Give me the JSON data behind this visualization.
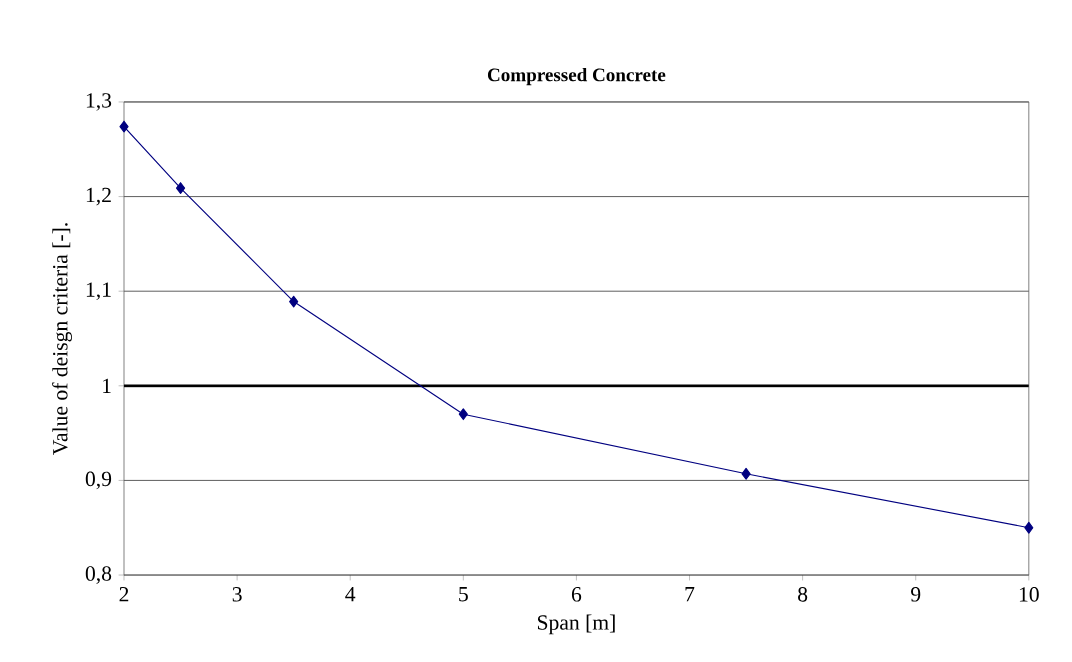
{
  "chart_data": {
    "type": "line",
    "title": "Compressed Concrete",
    "xlabel": "Span [m]",
    "ylabel": "Value of deisgn criteria [-].",
    "x": [
      2,
      2.5,
      3.5,
      5,
      7.5,
      10
    ],
    "series": [
      {
        "color": "#000080",
        "values": [
          1.274,
          1.209,
          1.089,
          0.97,
          0.907,
          0.85
        ]
      }
    ],
    "xlim": [
      2,
      10
    ],
    "xticks": [
      2,
      3,
      4,
      5,
      6,
      7,
      8,
      9,
      10
    ],
    "ylim": [
      0.8,
      1.3
    ],
    "yticks": [
      {
        "value": 0.8,
        "label": "0,8"
      },
      {
        "value": 0.9,
        "label": "0,9"
      },
      {
        "value": 1,
        "label": "1"
      },
      {
        "value": 1.1,
        "label": "1,1"
      },
      {
        "value": 1.2,
        "label": "1,2"
      },
      {
        "value": 1.3,
        "label": "1,3"
      }
    ],
    "ref_lines": [
      {
        "axis": "y",
        "value": 1,
        "color": "#000000"
      }
    ],
    "grid": "y",
    "marker": "diamond",
    "line_style": "solid"
  }
}
